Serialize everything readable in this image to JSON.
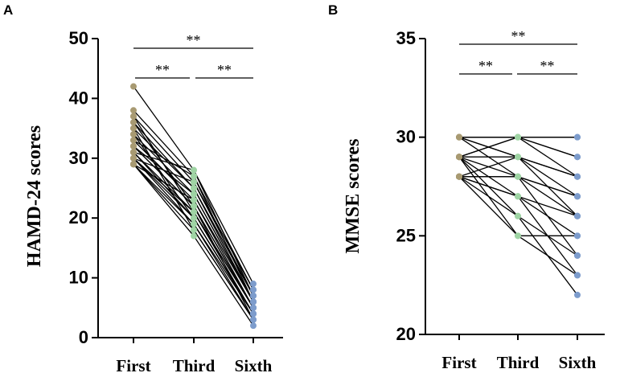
{
  "chart_data": [
    {
      "type": "line",
      "panel_label": "A",
      "ylabel": "HAMD-24 scores",
      "xlabel": "",
      "categories": [
        "First",
        "Third",
        "Sixth"
      ],
      "ylim": [
        0,
        50
      ],
      "yticks": [
        0,
        10,
        20,
        30,
        40,
        50
      ],
      "grid": false,
      "point_colors": [
        "#a89a72",
        "#9fd4a4",
        "#7d9ccc"
      ],
      "line_color": "#000000",
      "significance": [
        {
          "from": 0,
          "to": 2,
          "label": "**"
        },
        {
          "from": 0,
          "to": 1,
          "label": "**"
        },
        {
          "from": 1,
          "to": 2,
          "label": "**"
        }
      ],
      "subjects": [
        [
          42,
          28,
          9
        ],
        [
          38,
          27,
          8
        ],
        [
          37,
          26,
          7
        ],
        [
          36,
          25,
          7
        ],
        [
          35,
          25,
          6
        ],
        [
          34,
          24,
          6
        ],
        [
          33,
          23,
          6
        ],
        [
          32,
          22,
          5
        ],
        [
          32,
          22,
          5
        ],
        [
          31,
          21,
          5
        ],
        [
          31,
          20,
          4
        ],
        [
          30,
          20,
          4
        ],
        [
          30,
          19,
          4
        ],
        [
          29,
          19,
          3
        ],
        [
          29,
          18,
          3
        ],
        [
          29,
          17,
          2
        ],
        [
          31,
          28,
          7
        ],
        [
          33,
          27,
          6
        ],
        [
          36,
          22,
          3
        ],
        [
          30,
          26,
          8
        ],
        [
          29,
          23,
          5
        ],
        [
          34,
          20,
          4
        ],
        [
          37,
          21,
          5
        ],
        [
          35,
          18,
          3
        ],
        [
          32,
          24,
          6
        ],
        [
          30,
          21,
          4
        ]
      ]
    },
    {
      "type": "line",
      "panel_label": "B",
      "ylabel": "MMSE scores",
      "xlabel": "",
      "categories": [
        "First",
        "Third",
        "Sixth"
      ],
      "ylim": [
        20,
        35
      ],
      "yticks": [
        20,
        25,
        30,
        35
      ],
      "grid": false,
      "point_colors": [
        "#a89a72",
        "#9fd4a4",
        "#7d9ccc"
      ],
      "line_color": "#000000",
      "significance": [
        {
          "from": 0,
          "to": 2,
          "label": "**"
        },
        {
          "from": 0,
          "to": 1,
          "label": "**"
        },
        {
          "from": 1,
          "to": 2,
          "label": "**"
        }
      ],
      "subjects": [
        [
          30,
          30,
          30
        ],
        [
          30,
          30,
          29
        ],
        [
          30,
          29,
          28
        ],
        [
          30,
          28,
          27
        ],
        [
          30,
          30,
          28
        ],
        [
          29,
          30,
          29
        ],
        [
          29,
          29,
          27
        ],
        [
          29,
          28,
          26
        ],
        [
          29,
          27,
          25
        ],
        [
          29,
          26,
          24
        ],
        [
          28,
          29,
          28
        ],
        [
          28,
          28,
          27
        ],
        [
          28,
          27,
          26
        ],
        [
          28,
          25,
          23
        ],
        [
          28,
          26,
          22
        ],
        [
          29,
          25,
          25
        ],
        [
          28,
          28,
          24
        ],
        [
          30,
          29,
          26
        ],
        [
          29,
          30,
          30
        ],
        [
          28,
          27,
          23
        ]
      ]
    }
  ]
}
